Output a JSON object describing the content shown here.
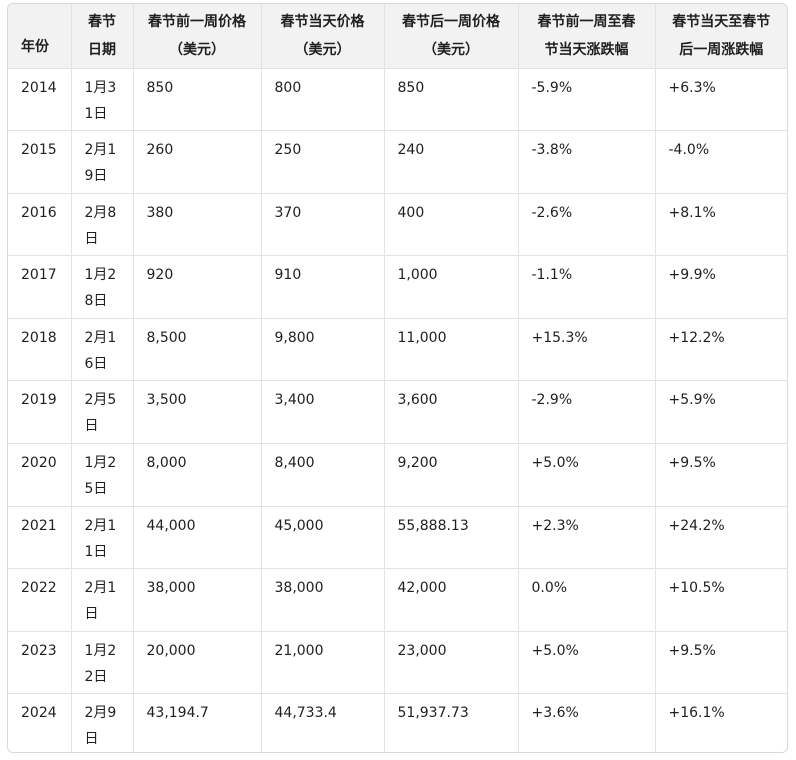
{
  "table": {
    "headers": [
      "年份",
      "春节日期",
      "春节前一周价格（美元）",
      "春节当天价格（美元）",
      "春节后一周价格（美元）",
      "春节前一周至春节当天涨跌幅",
      "春节当天至春节后一周涨跌幅"
    ],
    "rows": [
      [
        "2014",
        "1月31日",
        "850",
        "800",
        "850",
        "-5.9%",
        "+6.3%"
      ],
      [
        "2015",
        "2月19日",
        "260",
        "250",
        "240",
        "-3.8%",
        "-4.0%"
      ],
      [
        "2016",
        "2月8日",
        "380",
        "370",
        "400",
        "-2.6%",
        "+8.1%"
      ],
      [
        "2017",
        "1月28日",
        "920",
        "910",
        "1,000",
        "-1.1%",
        "+9.9%"
      ],
      [
        "2018",
        "2月16日",
        "8,500",
        "9,800",
        "11,000",
        "+15.3%",
        "+12.2%"
      ],
      [
        "2019",
        "2月5日",
        "3,500",
        "3,400",
        "3,600",
        "-2.9%",
        "+5.9%"
      ],
      [
        "2020",
        "1月25日",
        "8,000",
        "8,400",
        "9,200",
        "+5.0%",
        "+9.5%"
      ],
      [
        "2021",
        "2月11日",
        "44,000",
        "45,000",
        "55,888.13",
        "+2.3%",
        "+24.2%"
      ],
      [
        "2022",
        "2月1日",
        "38,000",
        "38,000",
        "42,000",
        "0.0%",
        "+10.5%"
      ],
      [
        "2023",
        "1月22日",
        "20,000",
        "21,000",
        "23,000",
        "+5.0%",
        "+9.5%"
      ],
      [
        "2024",
        "2月9日",
        "43,194.7",
        "44,733.4",
        "51,937.73",
        "+3.6%",
        "+16.1%"
      ]
    ]
  }
}
